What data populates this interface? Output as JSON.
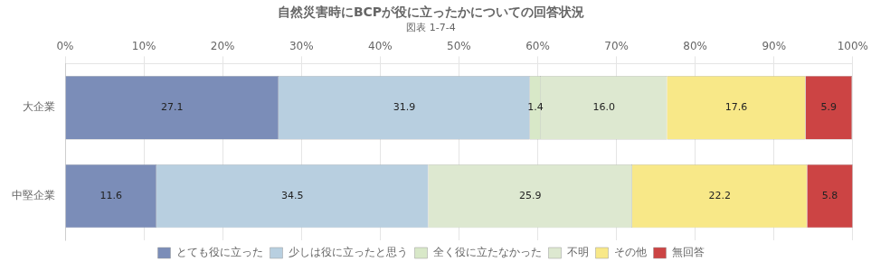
{
  "chart_data": {
    "type": "bar",
    "orientation": "horizontal",
    "stacked": true,
    "title": "自然災害時にBCPが役に立ったかについての回答状況",
    "subtitle": "図表 1-7-4",
    "categories": [
      "大企業",
      "中堅企業"
    ],
    "series": [
      {
        "name": "とても役に立った",
        "color": "#7b8db8",
        "values": [
          27.1,
          11.6
        ],
        "value_labels": [
          "27.1",
          "11.6"
        ]
      },
      {
        "name": "少しは役に立ったと思う",
        "color": "#b8cfe0",
        "values": [
          31.9,
          34.5
        ],
        "value_labels": [
          "31.9",
          "34.5"
        ]
      },
      {
        "name": "全く役に立たなかった",
        "color": "#d8e8c8",
        "values": [
          1.4,
          0.0
        ],
        "value_labels": [
          "1.4",
          null
        ]
      },
      {
        "name": "不明",
        "color": "#dde8d0",
        "values": [
          16.0,
          25.9
        ],
        "value_labels": [
          "16.0",
          "25.9"
        ]
      },
      {
        "name": "その他",
        "color": "#f8e888",
        "values": [
          17.6,
          22.2
        ],
        "value_labels": [
          "17.6",
          "22.2"
        ]
      },
      {
        "name": "無回答",
        "color": "#cc4444",
        "values": [
          5.9,
          5.8
        ],
        "value_labels": [
          "5.9",
          "5.8"
        ]
      }
    ],
    "xlim": [
      0,
      100
    ],
    "xticks": [
      {
        "value": 0,
        "label": "0%"
      },
      {
        "value": 10,
        "label": "10%"
      },
      {
        "value": 20,
        "label": "20%"
      },
      {
        "value": 30,
        "label": "30%"
      },
      {
        "value": 40,
        "label": "40%"
      },
      {
        "value": 50,
        "label": "50%"
      },
      {
        "value": 60,
        "label": "60%"
      },
      {
        "value": 70,
        "label": "70%"
      },
      {
        "value": 80,
        "label": "80%"
      },
      {
        "value": 90,
        "label": "90%"
      },
      {
        "value": 100,
        "label": "100%"
      }
    ],
    "grid": true,
    "legend": "bottom",
    "data_labels": true
  }
}
